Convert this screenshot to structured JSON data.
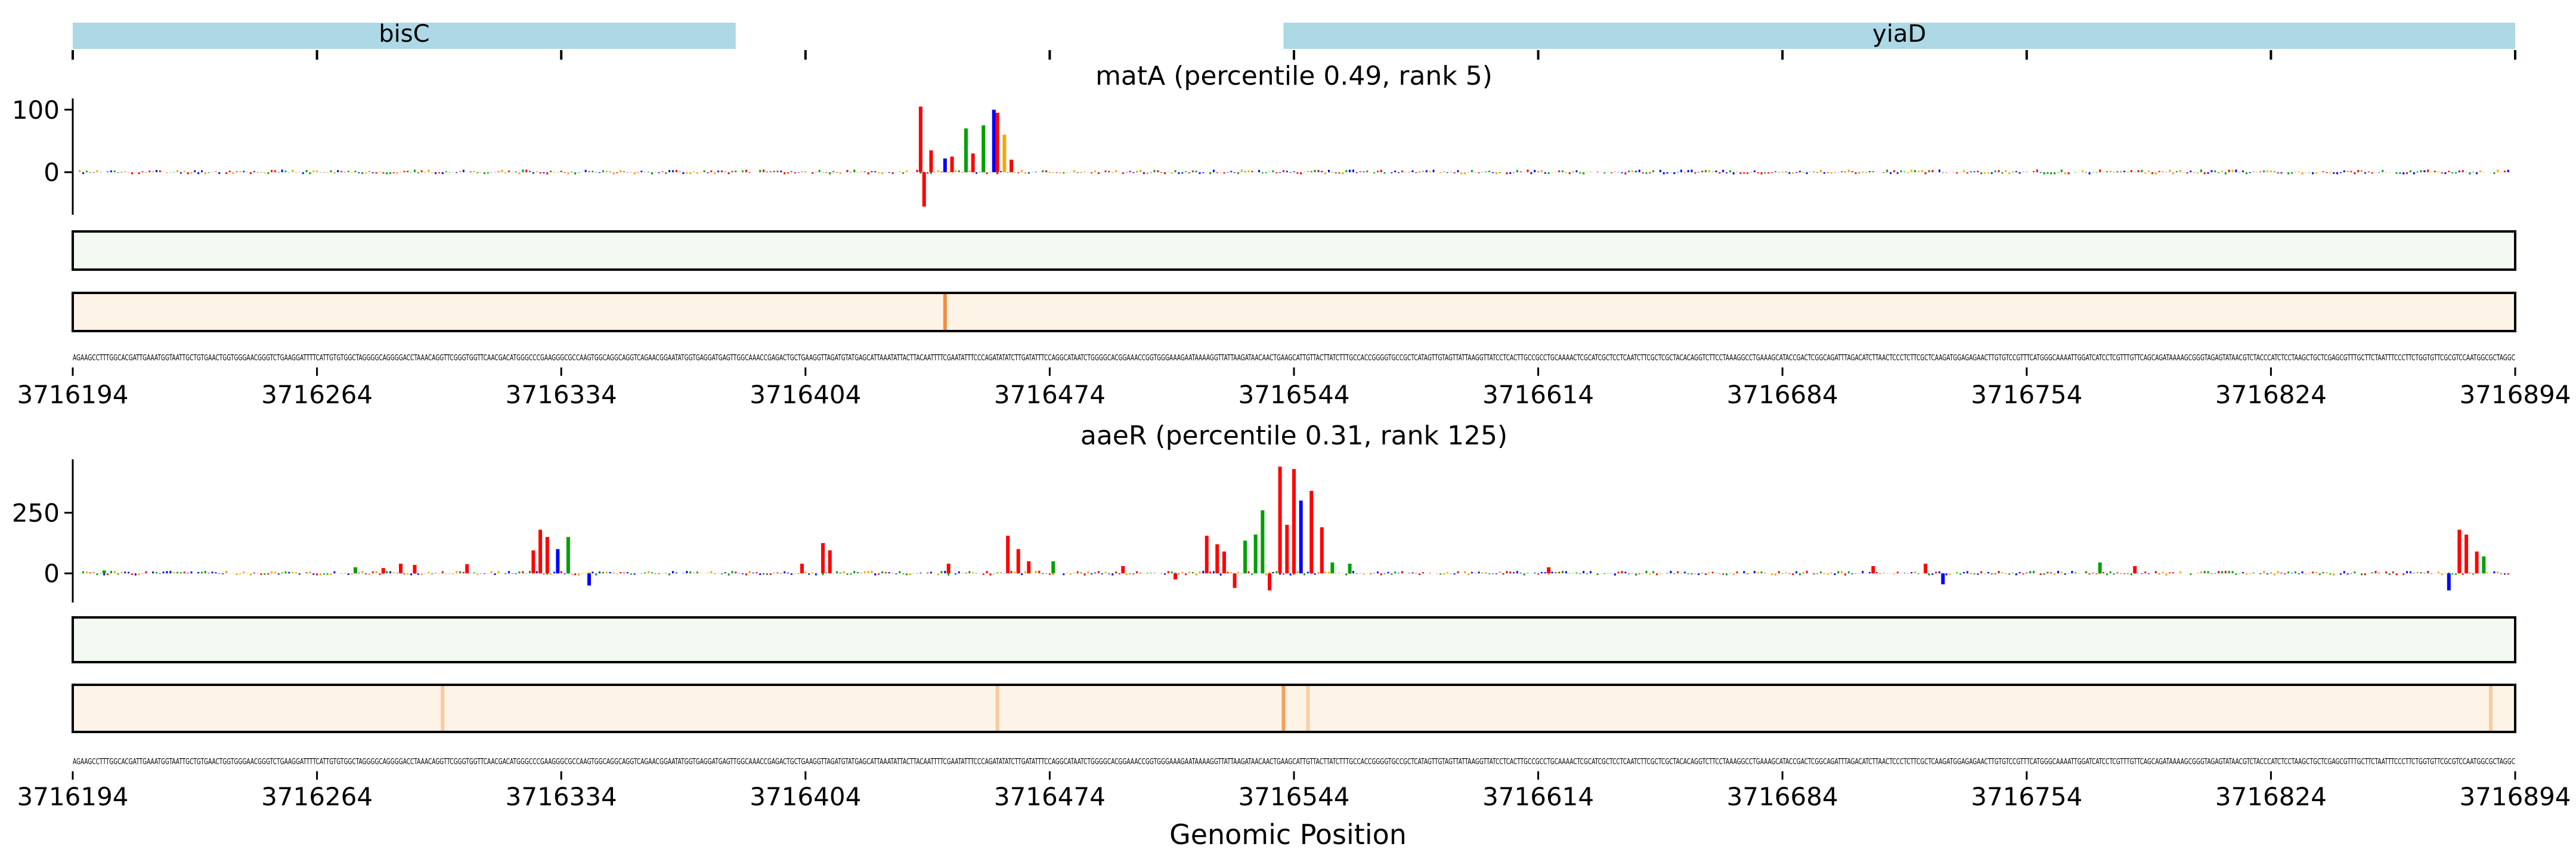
{
  "figure": {
    "xlabel": "Genomic Position",
    "genes": [
      {
        "name": "bisC",
        "start": 3716194,
        "end": 3716384,
        "color": "#add8e6"
      },
      {
        "name": "yiaD",
        "start": 3716541,
        "end": 3716894,
        "color": "#add8e6"
      }
    ],
    "sequence": "AGAAGCCTTTGGCACGATTGAAATGGTAATTGCTGTGAACTGGTGGGAACGGGTCTGAAGGATTTTCATTGTGTGGCTAGGGGCAGGGGACCTAAACAGGTTCGGGTGGTTCAACGACATGGGCCCGAAGGGCGCCAAGTGGCAGGCAGGTCAGAACGGAATATGGTGAGGATGAGTTGGCAAACCGAGACTGCTGAAGGTTAGATGTATGAGCATTAAATATTACTTACAATTTTCGAATATTTCCCAGATATATCTTGATATTTCCAGGCATAATCTGGGGCACGGAAACCGGTGGGAAAGAATAAAAGGTTATTAAGATAACAACTGAAGCATTGTTACTTATCTTTGCCACCGGGGTGCCGCTCATAGTTGTAGTTATTAAGGTTATCCTCACTTGCCGCCTGCAAAACTCGCATCGCTCCTCAATCTTCGCTCGCTACACAGGTCTTCCTAAAGGCCTGAAAGCATACCGACTCGGCAGATTTAGACATCTTAACTCCCTCTTCGCTCAAGATGGAGAGAACTTGTGTCCGTTTCATGGGCAAAATTGGATCATCCTCGTTTGTTCAGCAGATAAAAGCGGGTAGAGTATAACGTCTACCCATCTCCTAAGCTGCTCGAGCGTTTGCTTCTAATTTCCCTTCTGGTGTTCGCGTCCAATGGCGCTAGGC",
    "panels": [
      {
        "title": "matA (percentile 0.49, rank 5)",
        "yticks": [
          0,
          100
        ],
        "ylim": [
          -68,
          118
        ],
        "track_colors": {
          "green": "#f3faf1",
          "orange": "#fef3e7"
        },
        "orange_hotspots": [
          {
            "position": 3716444,
            "intensity": 0.85
          }
        ],
        "green_hotspots": []
      },
      {
        "title": "aaeR (percentile 0.31, rank 125)",
        "yticks": [
          0,
          250
        ],
        "ylim": [
          -120,
          470
        ],
        "track_colors": {
          "green": "#f3faf1",
          "orange": "#fef3e7"
        },
        "orange_hotspots": [
          {
            "position": 3716300,
            "intensity": 0.35
          },
          {
            "position": 3716459,
            "intensity": 0.35
          },
          {
            "position": 3716541,
            "intensity": 0.7
          },
          {
            "position": 3716548,
            "intensity": 0.3
          },
          {
            "position": 3716887,
            "intensity": 0.35
          }
        ],
        "green_hotspots": []
      }
    ],
    "xticks": [
      3716194,
      3716264,
      3716334,
      3716404,
      3716474,
      3716544,
      3716614,
      3716684,
      3716754,
      3716824,
      3716894
    ]
  },
  "chart_data": {
    "type": "sequence-logo-track",
    "xlabel": "Genomic Position",
    "xlim": [
      3716194,
      3716894
    ],
    "nucleotide_colors": {
      "A": "#00a000",
      "C": "#0000ff",
      "G": "#ffa500",
      "T": "#ff0000"
    },
    "series": [
      {
        "name": "matA",
        "peaks": [
          {
            "x": 3716437,
            "y": 105,
            "base": "T"
          },
          {
            "x": 3716438,
            "y": -55,
            "base": "T"
          },
          {
            "x": 3716440,
            "y": 35,
            "base": "T"
          },
          {
            "x": 3716444,
            "y": 22,
            "base": "C"
          },
          {
            "x": 3716446,
            "y": 25,
            "base": "T"
          },
          {
            "x": 3716450,
            "y": 70,
            "base": "A"
          },
          {
            "x": 3716452,
            "y": 30,
            "base": "T"
          },
          {
            "x": 3716455,
            "y": 75,
            "base": "A"
          },
          {
            "x": 3716458,
            "y": 100,
            "base": "C"
          },
          {
            "x": 3716459,
            "y": 95,
            "base": "T"
          },
          {
            "x": 3716461,
            "y": 60,
            "base": "G"
          },
          {
            "x": 3716463,
            "y": 20,
            "base": "T"
          }
        ]
      },
      {
        "name": "aaeR",
        "peaks": [
          {
            "x": 3716203,
            "y": 12,
            "base": "A"
          },
          {
            "x": 3716275,
            "y": 25,
            "base": "A"
          },
          {
            "x": 3716283,
            "y": 22,
            "base": "T"
          },
          {
            "x": 3716288,
            "y": 40,
            "base": "T"
          },
          {
            "x": 3716292,
            "y": 35,
            "base": "T"
          },
          {
            "x": 3716307,
            "y": 38,
            "base": "T"
          },
          {
            "x": 3716326,
            "y": 95,
            "base": "T"
          },
          {
            "x": 3716328,
            "y": 180,
            "base": "T"
          },
          {
            "x": 3716330,
            "y": 150,
            "base": "T"
          },
          {
            "x": 3716333,
            "y": 100,
            "base": "C"
          },
          {
            "x": 3716336,
            "y": 150,
            "base": "A"
          },
          {
            "x": 3716342,
            "y": -50,
            "base": "C"
          },
          {
            "x": 3716403,
            "y": 40,
            "base": "T"
          },
          {
            "x": 3716409,
            "y": 125,
            "base": "T"
          },
          {
            "x": 3716411,
            "y": 95,
            "base": "T"
          },
          {
            "x": 3716445,
            "y": 40,
            "base": "T"
          },
          {
            "x": 3716462,
            "y": 155,
            "base": "T"
          },
          {
            "x": 3716465,
            "y": 100,
            "base": "T"
          },
          {
            "x": 3716468,
            "y": 50,
            "base": "T"
          },
          {
            "x": 3716475,
            "y": 50,
            "base": "A"
          },
          {
            "x": 3716495,
            "y": 30,
            "base": "T"
          },
          {
            "x": 3716510,
            "y": -25,
            "base": "T"
          },
          {
            "x": 3716519,
            "y": 155,
            "base": "T"
          },
          {
            "x": 3716522,
            "y": 120,
            "base": "T"
          },
          {
            "x": 3716524,
            "y": 90,
            "base": "T"
          },
          {
            "x": 3716527,
            "y": -60,
            "base": "T"
          },
          {
            "x": 3716530,
            "y": 135,
            "base": "A"
          },
          {
            "x": 3716533,
            "y": 160,
            "base": "A"
          },
          {
            "x": 3716535,
            "y": 260,
            "base": "A"
          },
          {
            "x": 3716537,
            "y": -70,
            "base": "T"
          },
          {
            "x": 3716540,
            "y": 440,
            "base": "T"
          },
          {
            "x": 3716542,
            "y": 200,
            "base": "T"
          },
          {
            "x": 3716544,
            "y": 430,
            "base": "T"
          },
          {
            "x": 3716546,
            "y": 300,
            "base": "C"
          },
          {
            "x": 3716549,
            "y": 340,
            "base": "T"
          },
          {
            "x": 3716552,
            "y": 190,
            "base": "T"
          },
          {
            "x": 3716555,
            "y": 45,
            "base": "A"
          },
          {
            "x": 3716560,
            "y": 40,
            "base": "A"
          },
          {
            "x": 3716617,
            "y": 25,
            "base": "T"
          },
          {
            "x": 3716710,
            "y": 30,
            "base": "T"
          },
          {
            "x": 3716725,
            "y": 40,
            "base": "T"
          },
          {
            "x": 3716730,
            "y": -45,
            "base": "C"
          },
          {
            "x": 3716775,
            "y": 45,
            "base": "A"
          },
          {
            "x": 3716785,
            "y": 30,
            "base": "T"
          },
          {
            "x": 3716875,
            "y": -70,
            "base": "C"
          },
          {
            "x": 3716878,
            "y": 180,
            "base": "T"
          },
          {
            "x": 3716880,
            "y": 160,
            "base": "T"
          },
          {
            "x": 3716883,
            "y": 90,
            "base": "T"
          },
          {
            "x": 3716885,
            "y": 70,
            "base": "A"
          }
        ]
      }
    ]
  }
}
